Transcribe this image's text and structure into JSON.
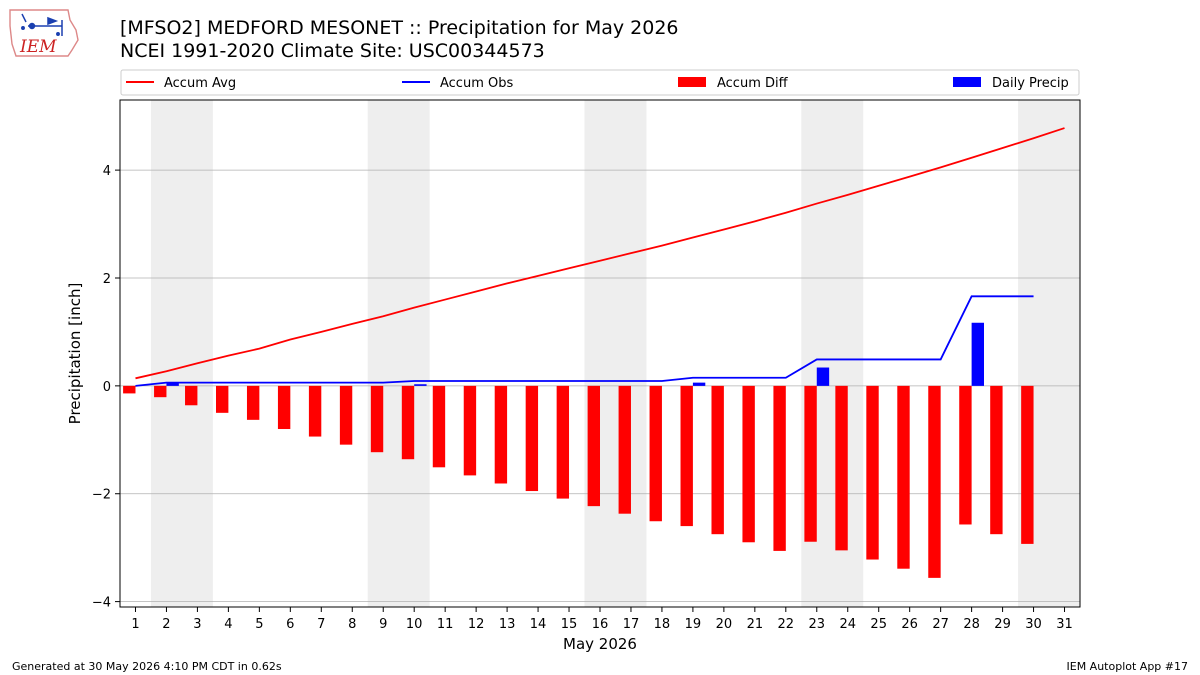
{
  "header": {
    "title": "[MFSO2] MEDFORD MESONET :: Precipitation for May 2026",
    "subtitle": "NCEI 1991-2020 Climate Site: USC00344573",
    "logo_text": "IEM"
  },
  "footer": {
    "left": "Generated at 30 May 2026 4:10 PM CDT in 0.62s",
    "right": "IEM Autoplot App #17"
  },
  "chart_data": {
    "type": "bar",
    "xlabel": "May 2026",
    "ylabel": "Precipitation [inch]",
    "xlim": [
      0.5,
      31.5
    ],
    "ylim": [
      -4.1,
      5.3
    ],
    "x_ticks": [
      1,
      2,
      3,
      4,
      5,
      6,
      7,
      8,
      9,
      10,
      11,
      12,
      13,
      14,
      15,
      16,
      17,
      18,
      19,
      20,
      21,
      22,
      23,
      24,
      25,
      26,
      27,
      28,
      29,
      30,
      31
    ],
    "y_ticks": [
      -4,
      -2,
      0,
      2,
      4
    ],
    "y_tick_labels": [
      "−4",
      "−2",
      "0",
      "2",
      "4"
    ],
    "grid": "horizontal",
    "legend_position": "top",
    "weekend_shading": [
      [
        1.5,
        3.5
      ],
      [
        8.5,
        10.5
      ],
      [
        15.5,
        17.5
      ],
      [
        22.5,
        24.5
      ],
      [
        29.5,
        31.5
      ]
    ],
    "series": [
      {
        "name": "Accum Avg",
        "kind": "line",
        "color": "#ff0000",
        "x": [
          1,
          2,
          3,
          4,
          5,
          6,
          7,
          8,
          9,
          10,
          11,
          12,
          13,
          14,
          15,
          16,
          17,
          18,
          19,
          20,
          21,
          22,
          23,
          24,
          25,
          26,
          27,
          28,
          29,
          30,
          31
        ],
        "values": [
          0.14,
          0.27,
          0.42,
          0.56,
          0.69,
          0.86,
          1.0,
          1.15,
          1.29,
          1.45,
          1.6,
          1.75,
          1.9,
          2.04,
          2.18,
          2.32,
          2.46,
          2.6,
          2.75,
          2.9,
          3.05,
          3.21,
          3.38,
          3.54,
          3.71,
          3.88,
          4.05,
          4.23,
          4.41,
          4.59,
          4.78
        ]
      },
      {
        "name": "Accum Obs",
        "kind": "line",
        "color": "#0000ff",
        "x": [
          1,
          2,
          3,
          4,
          5,
          6,
          7,
          8,
          9,
          10,
          11,
          12,
          13,
          14,
          15,
          16,
          17,
          18,
          19,
          20,
          21,
          22,
          23,
          24,
          25,
          26,
          27,
          28,
          29,
          30
        ],
        "values": [
          0.0,
          0.06,
          0.06,
          0.06,
          0.06,
          0.06,
          0.06,
          0.06,
          0.06,
          0.09,
          0.09,
          0.09,
          0.09,
          0.09,
          0.09,
          0.09,
          0.09,
          0.09,
          0.15,
          0.15,
          0.15,
          0.15,
          0.49,
          0.49,
          0.49,
          0.49,
          0.49,
          1.66,
          1.66,
          1.66
        ]
      },
      {
        "name": "Accum Diff",
        "kind": "bar",
        "color": "#ff0000",
        "x": [
          1,
          2,
          3,
          4,
          5,
          6,
          7,
          8,
          9,
          10,
          11,
          12,
          13,
          14,
          15,
          16,
          17,
          18,
          19,
          20,
          21,
          22,
          23,
          24,
          25,
          26,
          27,
          28,
          29,
          30
        ],
        "values": [
          -0.14,
          -0.21,
          -0.36,
          -0.5,
          -0.63,
          -0.8,
          -0.94,
          -1.09,
          -1.23,
          -1.36,
          -1.51,
          -1.66,
          -1.81,
          -1.95,
          -2.09,
          -2.23,
          -2.37,
          -2.51,
          -2.6,
          -2.75,
          -2.9,
          -3.06,
          -2.89,
          -3.05,
          -3.22,
          -3.39,
          -3.56,
          -2.57,
          -2.75,
          -2.93
        ]
      },
      {
        "name": "Daily Precip",
        "kind": "bar",
        "color": "#0000ff",
        "x": [
          2,
          10,
          19,
          23,
          28
        ],
        "values": [
          0.06,
          0.03,
          0.06,
          0.34,
          1.17
        ]
      }
    ]
  }
}
